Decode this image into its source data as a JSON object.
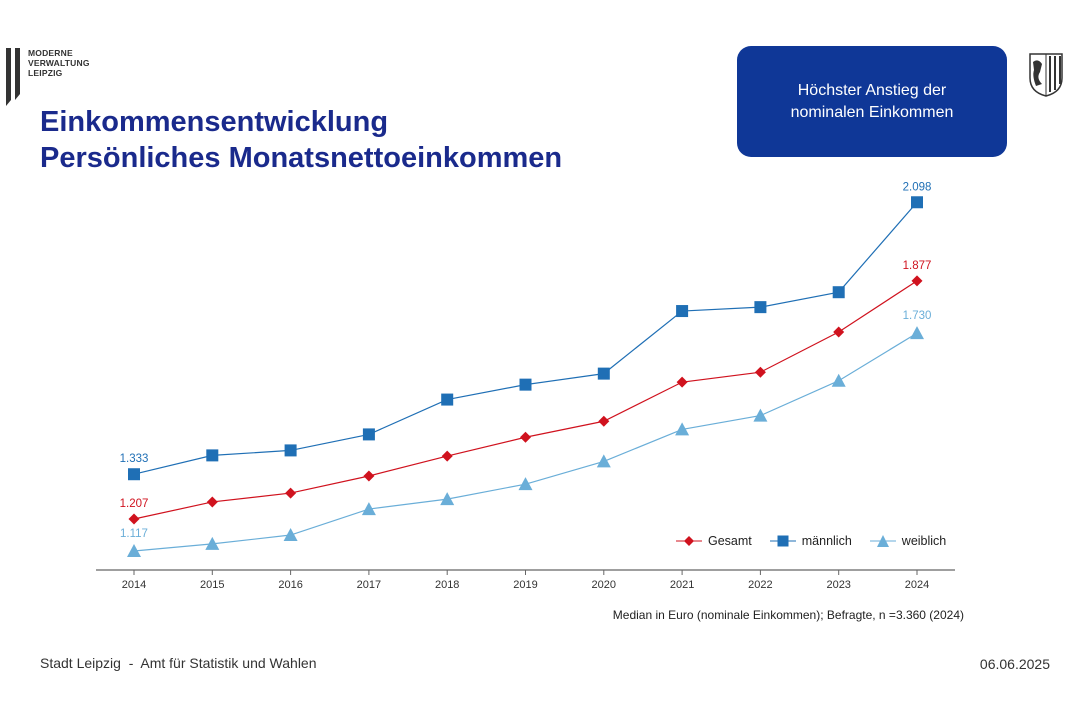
{
  "logo": {
    "text": "MODERNE VERWALTUNG LEIPZIG",
    "lines": [
      "MODERNE",
      "VERWALTUNG",
      "LEIPZIG"
    ]
  },
  "title": {
    "line1": "Einkommensentwicklung",
    "line2": "Persönliches Monatsnettoeinkommen"
  },
  "callout": {
    "line1": "Höchster Anstieg der",
    "line2": "nominalen Einkommen",
    "color": "#0f3797"
  },
  "note": "Median in Euro (nominale Einkommen); Befragte, n =3.360 (2024)",
  "footer": {
    "left": "Stadt Leipzig  -  Amt für Statistik und Wahlen",
    "date": "06.06.2025"
  },
  "chart_data": {
    "type": "line",
    "x": [
      "2014",
      "2015",
      "2016",
      "2017",
      "2018",
      "2019",
      "2020",
      "2021",
      "2022",
      "2023",
      "2024"
    ],
    "ylim": [
      1020,
      2200
    ],
    "grid": false,
    "legend_placement": "bottom-right",
    "series": [
      {
        "name": "Gesamt",
        "color": "#d0121e",
        "marker": "diamond",
        "values": [
          1207,
          1255,
          1280,
          1328,
          1384,
          1437,
          1482,
          1592,
          1620,
          1733,
          1877
        ],
        "labels": {
          "0": "1.207",
          "10": "1.877"
        }
      },
      {
        "name": "männlich",
        "color": "#1f6fb5",
        "marker": "square",
        "values": [
          1333,
          1386,
          1400,
          1445,
          1543,
          1585,
          1616,
          1792,
          1803,
          1845,
          2098
        ],
        "labels": {
          "0": "1.333",
          "10": "2.098"
        }
      },
      {
        "name": "weiblich",
        "color": "#6aaed8",
        "marker": "triangle",
        "values": [
          1117,
          1137,
          1162,
          1235,
          1263,
          1305,
          1369,
          1459,
          1498,
          1596,
          1730
        ],
        "labels": {
          "0": "1.117",
          "10": "1.730"
        }
      }
    ]
  }
}
